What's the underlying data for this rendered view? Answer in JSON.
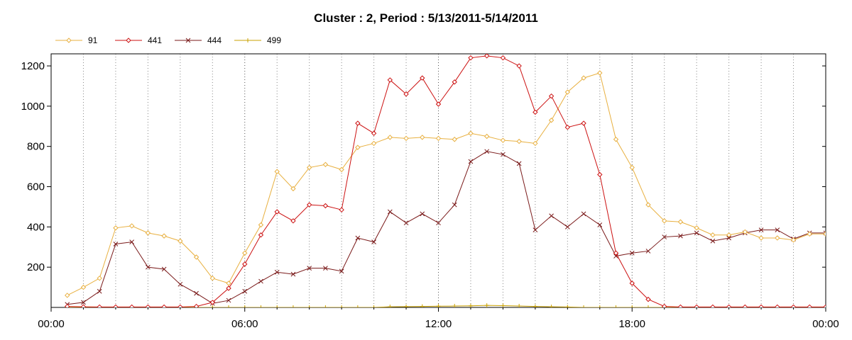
{
  "chart_data": {
    "type": "line",
    "title": "Cluster : 2, Period : 5/13/2011-5/14/2011",
    "xlabel": "",
    "ylabel": "",
    "x_unit": "hours",
    "xlim": [
      0,
      24
    ],
    "ylim": [
      0,
      1260
    ],
    "x_ticks": [
      0,
      6,
      12,
      18,
      24
    ],
    "x_tick_labels": [
      "00:00",
      "06:00",
      "12:00",
      "18:00",
      "00:00"
    ],
    "y_ticks": [
      200,
      400,
      600,
      800,
      1000,
      1200
    ],
    "y_tick_labels": [
      "200",
      "400",
      "600",
      "800",
      "1000",
      "1200"
    ],
    "grid": "vertical dotted lines every hour",
    "legend_position": "top-left",
    "x": [
      0.5,
      1.0,
      1.5,
      2.0,
      2.5,
      3.0,
      3.5,
      4.0,
      4.5,
      5.0,
      5.5,
      6.0,
      6.5,
      7.0,
      7.5,
      8.0,
      8.5,
      9.0,
      9.5,
      10.0,
      10.5,
      11.0,
      11.5,
      12.0,
      12.5,
      13.0,
      13.5,
      14.0,
      14.5,
      15.0,
      15.5,
      16.0,
      16.5,
      17.0,
      17.5,
      18.0,
      18.5,
      19.0,
      19.5,
      20.0,
      20.5,
      21.0,
      21.5,
      22.0,
      22.5,
      23.0,
      23.5,
      24.0
    ],
    "series": [
      {
        "name": "91",
        "color": "#e8b040",
        "marker": "diamond",
        "values": [
          60,
          100,
          145,
          395,
          405,
          370,
          355,
          330,
          250,
          145,
          120,
          270,
          410,
          675,
          590,
          695,
          710,
          685,
          795,
          815,
          845,
          840,
          845,
          840,
          835,
          865,
          850,
          830,
          825,
          815,
          930,
          1070,
          1140,
          1165,
          835,
          695,
          510,
          430,
          425,
          395,
          360,
          360,
          375,
          345,
          345,
          335,
          365,
          365
        ]
      },
      {
        "name": "441",
        "color": "#cc1111",
        "marker": "diamond",
        "values": [
          5,
          3,
          2,
          2,
          2,
          2,
          2,
          2,
          5,
          25,
          95,
          215,
          360,
          475,
          430,
          510,
          505,
          485,
          915,
          865,
          1130,
          1060,
          1140,
          1010,
          1120,
          1240,
          1250,
          1240,
          1200,
          970,
          1050,
          895,
          915,
          660,
          270,
          120,
          40,
          5,
          2,
          2,
          2,
          2,
          2,
          2,
          2,
          2,
          2,
          2
        ]
      },
      {
        "name": "444",
        "color": "#7a1a1a",
        "marker": "x",
        "values": [
          15,
          25,
          80,
          315,
          325,
          200,
          190,
          115,
          70,
          20,
          35,
          80,
          130,
          175,
          165,
          195,
          195,
          180,
          345,
          325,
          475,
          420,
          465,
          420,
          510,
          725,
          775,
          760,
          715,
          385,
          455,
          400,
          465,
          410,
          255,
          270,
          280,
          350,
          355,
          370,
          330,
          345,
          370,
          385,
          385,
          340,
          370,
          370
        ]
      },
      {
        "name": "499",
        "color": "#c8a000",
        "marker": "plus",
        "values": [
          0,
          0,
          0,
          0,
          0,
          0,
          0,
          0,
          0,
          0,
          0,
          0,
          0,
          0,
          0,
          0,
          0,
          0,
          0,
          0,
          3,
          4,
          5,
          6,
          7,
          8,
          10,
          9,
          7,
          5,
          3,
          2,
          0,
          0,
          0,
          0,
          0,
          0,
          0,
          0,
          0,
          0,
          0,
          0,
          0,
          0,
          0,
          0
        ]
      }
    ]
  }
}
